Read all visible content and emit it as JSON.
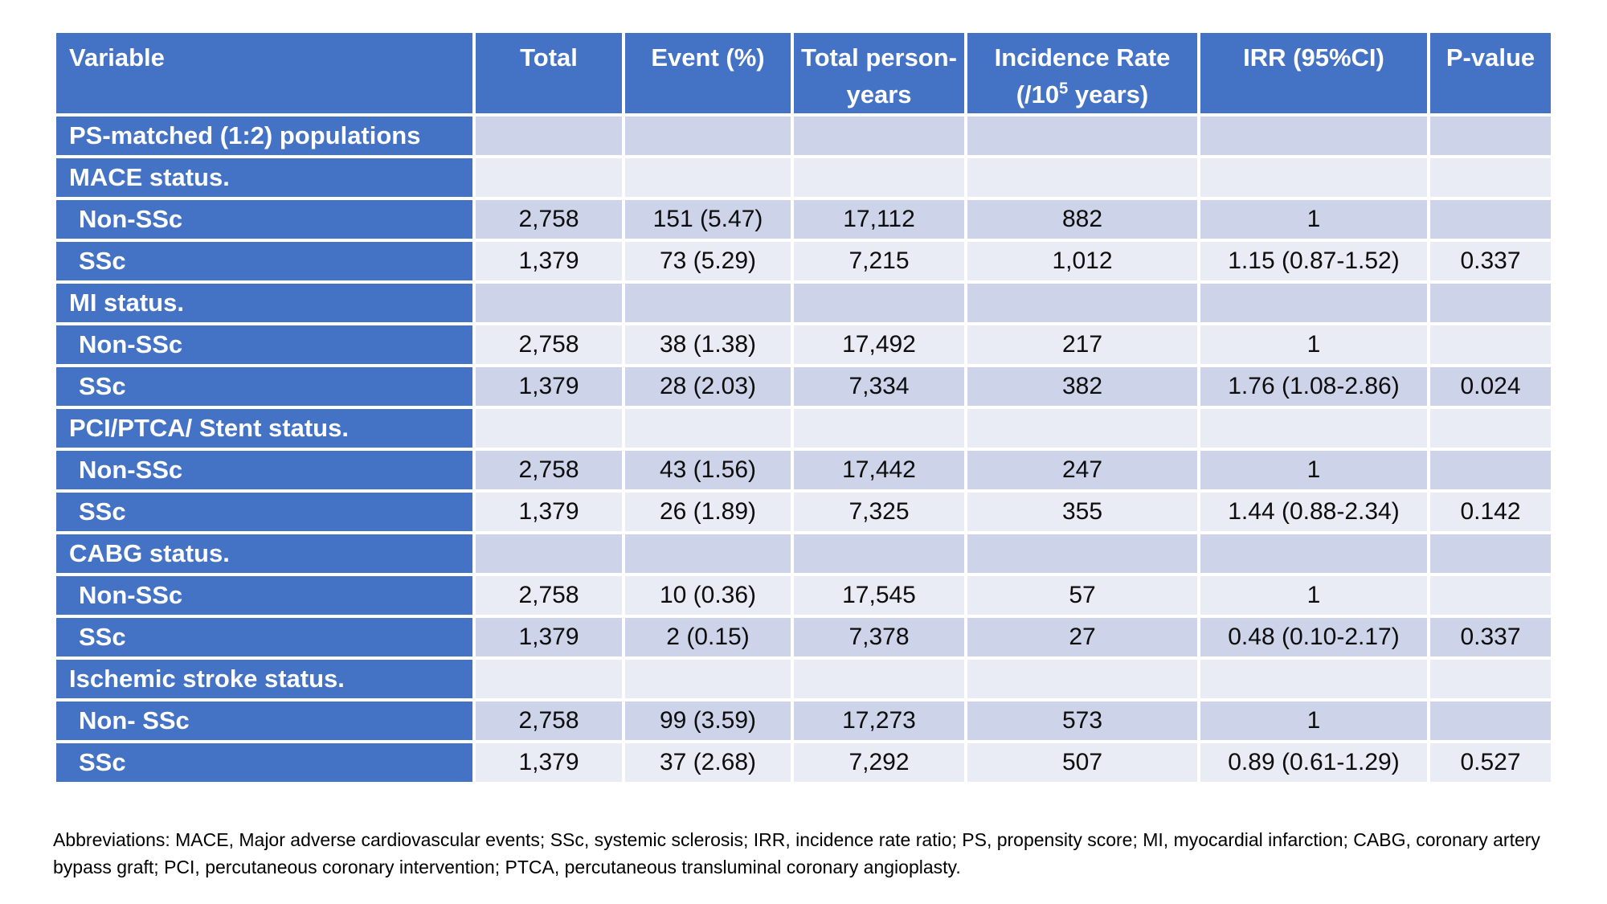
{
  "colors": {
    "header_blue": "#4472C4",
    "band_dark": "#CDD3E8",
    "band_light": "#E9EBF5",
    "grid_line": "#FFFFFF",
    "header_text": "#FFFFFF",
    "body_text": "#0D0D0D",
    "page_background": "#FFFFFF"
  },
  "table": {
    "headers": {
      "variable": "Variable",
      "total": "Total",
      "event": "Event (%)",
      "person_years": "Total person-years",
      "incidence_pre": "Incidence Rate (/10",
      "incidence_sup": "5",
      "incidence_post": " years)",
      "irr": "IRR (95%CI)",
      "p_value": "P-value"
    },
    "rows": [
      {
        "kind": "section",
        "variable": "PS-matched (1:2) populations",
        "total": "",
        "event": "",
        "py": "",
        "ir": "",
        "irr": "",
        "p": ""
      },
      {
        "kind": "section",
        "variable": "MACE status.",
        "total": "",
        "event": "",
        "py": "",
        "ir": "",
        "irr": "",
        "p": ""
      },
      {
        "kind": "data",
        "variable": "Non-SSc",
        "total": "2,758",
        "event": "151 (5.47)",
        "py": "17,112",
        "ir": "882",
        "irr": "1",
        "p": ""
      },
      {
        "kind": "data",
        "variable": "SSc",
        "total": "1,379",
        "event": "73 (5.29)",
        "py": "7,215",
        "ir": "1,012",
        "irr": "1.15 (0.87-1.52)",
        "p": "0.337"
      },
      {
        "kind": "section",
        "variable": "MI status.",
        "total": "",
        "event": "",
        "py": "",
        "ir": "",
        "irr": "",
        "p": ""
      },
      {
        "kind": "data",
        "variable": "Non-SSc",
        "total": "2,758",
        "event": "38 (1.38)",
        "py": "17,492",
        "ir": "217",
        "irr": "1",
        "p": ""
      },
      {
        "kind": "data",
        "variable": "SSc",
        "total": "1,379",
        "event": "28 (2.03)",
        "py": "7,334",
        "ir": "382",
        "irr": "1.76 (1.08-2.86)",
        "p": "0.024"
      },
      {
        "kind": "section",
        "variable": "PCI/PTCA/ Stent status.",
        "total": "",
        "event": "",
        "py": "",
        "ir": "",
        "irr": "",
        "p": ""
      },
      {
        "kind": "data",
        "variable": "Non-SSc",
        "total": "2,758",
        "event": "43 (1.56)",
        "py": "17,442",
        "ir": "247",
        "irr": "1",
        "p": ""
      },
      {
        "kind": "data",
        "variable": "SSc",
        "total": "1,379",
        "event": "26 (1.89)",
        "py": "7,325",
        "ir": "355",
        "irr": "1.44 (0.88-2.34)",
        "p": "0.142"
      },
      {
        "kind": "section",
        "variable": "CABG status.",
        "total": "",
        "event": "",
        "py": "",
        "ir": "",
        "irr": "",
        "p": ""
      },
      {
        "kind": "data",
        "variable": "Non-SSc",
        "total": "2,758",
        "event": "10 (0.36)",
        "py": "17,545",
        "ir": "57",
        "irr": "1",
        "p": ""
      },
      {
        "kind": "data",
        "variable": "SSc",
        "total": "1,379",
        "event": "2 (0.15)",
        "py": "7,378",
        "ir": "27",
        "irr": "0.48 (0.10-2.17)",
        "p": "0.337"
      },
      {
        "kind": "section",
        "variable": "Ischemic stroke status.",
        "total": "",
        "event": "",
        "py": "",
        "ir": "",
        "irr": "",
        "p": ""
      },
      {
        "kind": "data",
        "variable": "Non- SSc",
        "total": "2,758",
        "event": "99 (3.59)",
        "py": "17,273",
        "ir": "573",
        "irr": "1",
        "p": ""
      },
      {
        "kind": "data",
        "variable": "SSc",
        "total": "1,379",
        "event": "37 (2.68)",
        "py": "7,292",
        "ir": "507",
        "irr": "0.89 (0.61-1.29)",
        "p": "0.527"
      }
    ]
  },
  "footnote": "Abbreviations: MACE, Major adverse cardiovascular events; SSc, systemic sclerosis; IRR, incidence rate ratio; PS, propensity score; MI, myocardial infarction; CABG, coronary artery bypass graft; PCI, percutaneous coronary intervention; PTCA, percutaneous transluminal coronary angioplasty."
}
